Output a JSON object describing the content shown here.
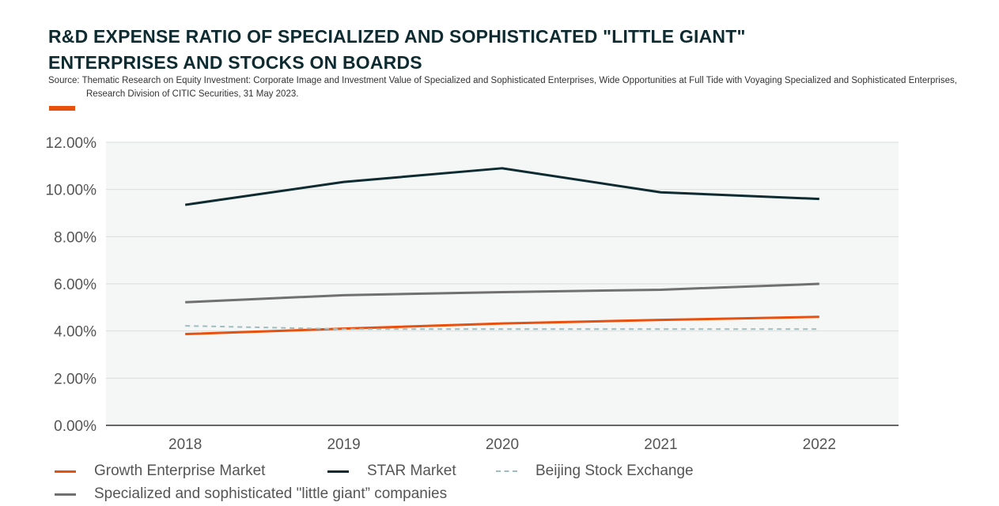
{
  "header": {
    "title_line1": "R&D EXPENSE RATIO OF SPECIALIZED AND SOPHISTICATED \"LITTLE GIANT\"",
    "title_line2": "ENTERPRISES AND STOCKS ON BOARDS",
    "source": "Source: Thematic Research on Equity Investment: Corporate Image and Investment Value of Specialized and Sophisticated Enterprises, Wide Opportunities at Full Tide with Voyaging Specialized and Sophisticated Enterprises, Research Division of CITIC Securities, 31 May 2023."
  },
  "colors": {
    "accent": "#e8500e",
    "title": "#0d2b30",
    "plot_bg": "#f5f7f6",
    "grid": "#dcdcdc"
  },
  "chart_data": {
    "type": "line",
    "categories": [
      "2018",
      "2019",
      "2020",
      "2021",
      "2022"
    ],
    "ylim": [
      0,
      12
    ],
    "yticks": [
      0,
      2,
      4,
      6,
      8,
      10,
      12
    ],
    "ytick_labels": [
      "0.00%",
      "2.00%",
      "4.00%",
      "6.00%",
      "8.00%",
      "10.00%",
      "12.00%"
    ],
    "grid": true,
    "legend_position": "bottom",
    "series": [
      {
        "name": "Growth Enterprise Market",
        "values": [
          3.87,
          4.1,
          4.32,
          4.47,
          4.6
        ],
        "color": "#e8500e",
        "dash": false
      },
      {
        "name": "STAR Market",
        "values": [
          9.35,
          10.32,
          10.9,
          9.88,
          9.6
        ],
        "color": "#0d2b30",
        "dash": false
      },
      {
        "name": "Beijing Stock Exchange",
        "values": [
          4.22,
          4.08,
          4.08,
          4.08,
          4.08
        ],
        "color": "#9fbcbf",
        "dash": true
      },
      {
        "name": "Specialized and sophisticated \"little giant” companies",
        "values": [
          5.22,
          5.52,
          5.65,
          5.75,
          6.0
        ],
        "color": "#707070",
        "dash": false
      }
    ]
  }
}
